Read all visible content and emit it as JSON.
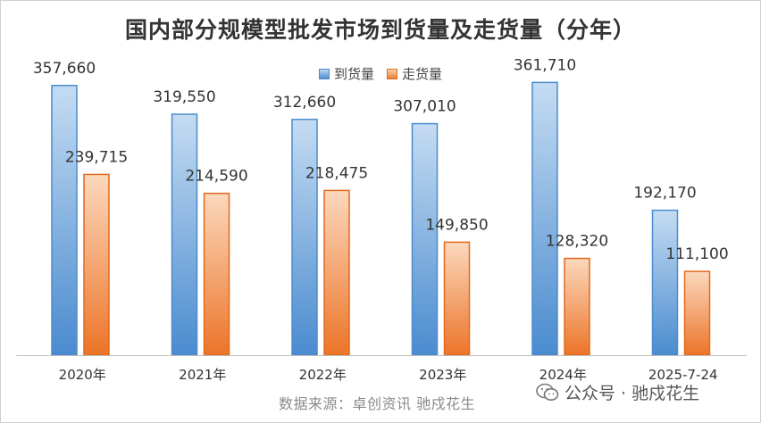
{
  "chart_data": {
    "type": "bar",
    "title": "国内部分规模型批发市场到货量及走货量（分年）",
    "categories": [
      "2020年",
      "2021年",
      "2022年",
      "2023年",
      "2024年",
      "2025-7-24"
    ],
    "series": [
      {
        "name": "到货量",
        "values": [
          357660,
          319550,
          312660,
          307010,
          361710,
          192170
        ],
        "labels": [
          "357,660",
          "319,550",
          "312,660",
          "307,010",
          "361,710",
          "192,170"
        ],
        "color": "#5b9bd5"
      },
      {
        "name": "走货量",
        "values": [
          239715,
          214590,
          218475,
          149850,
          128320,
          111100
        ],
        "labels": [
          "239,715",
          "214,590",
          "218,475",
          "149,850",
          "128,320",
          "111,100"
        ],
        "color": "#ed7d31"
      }
    ],
    "ylim": [
      0,
      400000
    ],
    "grid": false,
    "legend": "top-center"
  },
  "footer": {
    "source": "数据来源：卓创资讯 驰戍花生"
  },
  "watermark": {
    "text": "公众号 · 驰戍花生",
    "icon": "wechat-icon"
  }
}
